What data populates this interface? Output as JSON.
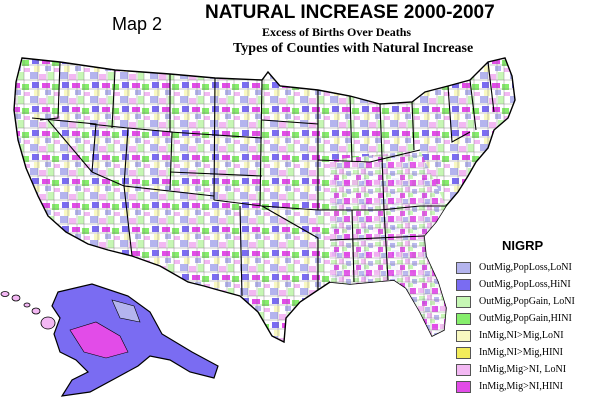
{
  "header": {
    "map_label": "Map 2",
    "title": "NATURAL INCREASE 2000-2007",
    "subtitle": "Excess of Births Over Deaths",
    "subtitle2": "Types of Counties with Natural Increase"
  },
  "legend": {
    "title": "NIGRP",
    "items": [
      {
        "label": "OutMig,PopLoss,LoNI",
        "color": "#b4b4ee"
      },
      {
        "label": "OutMig,PopLoss,HiNI",
        "color": "#7a6cf2"
      },
      {
        "label": "OutMig,PopGain, LoNI",
        "color": "#c6f7b4"
      },
      {
        "label": "OutMig,PopGain,HINI",
        "color": "#86ee6c"
      },
      {
        "label": "InMig,NI>Mig,LoNI",
        "color": "#f8f8c0"
      },
      {
        "label": "InMig,NI>Mig,HINI",
        "color": "#f3ec5a"
      },
      {
        "label": "InMig,Mig>NI, LoNI",
        "color": "#f3b8f3"
      },
      {
        "label": "InMig,Mig>NI,HINI",
        "color": "#e24ce8"
      }
    ]
  }
}
